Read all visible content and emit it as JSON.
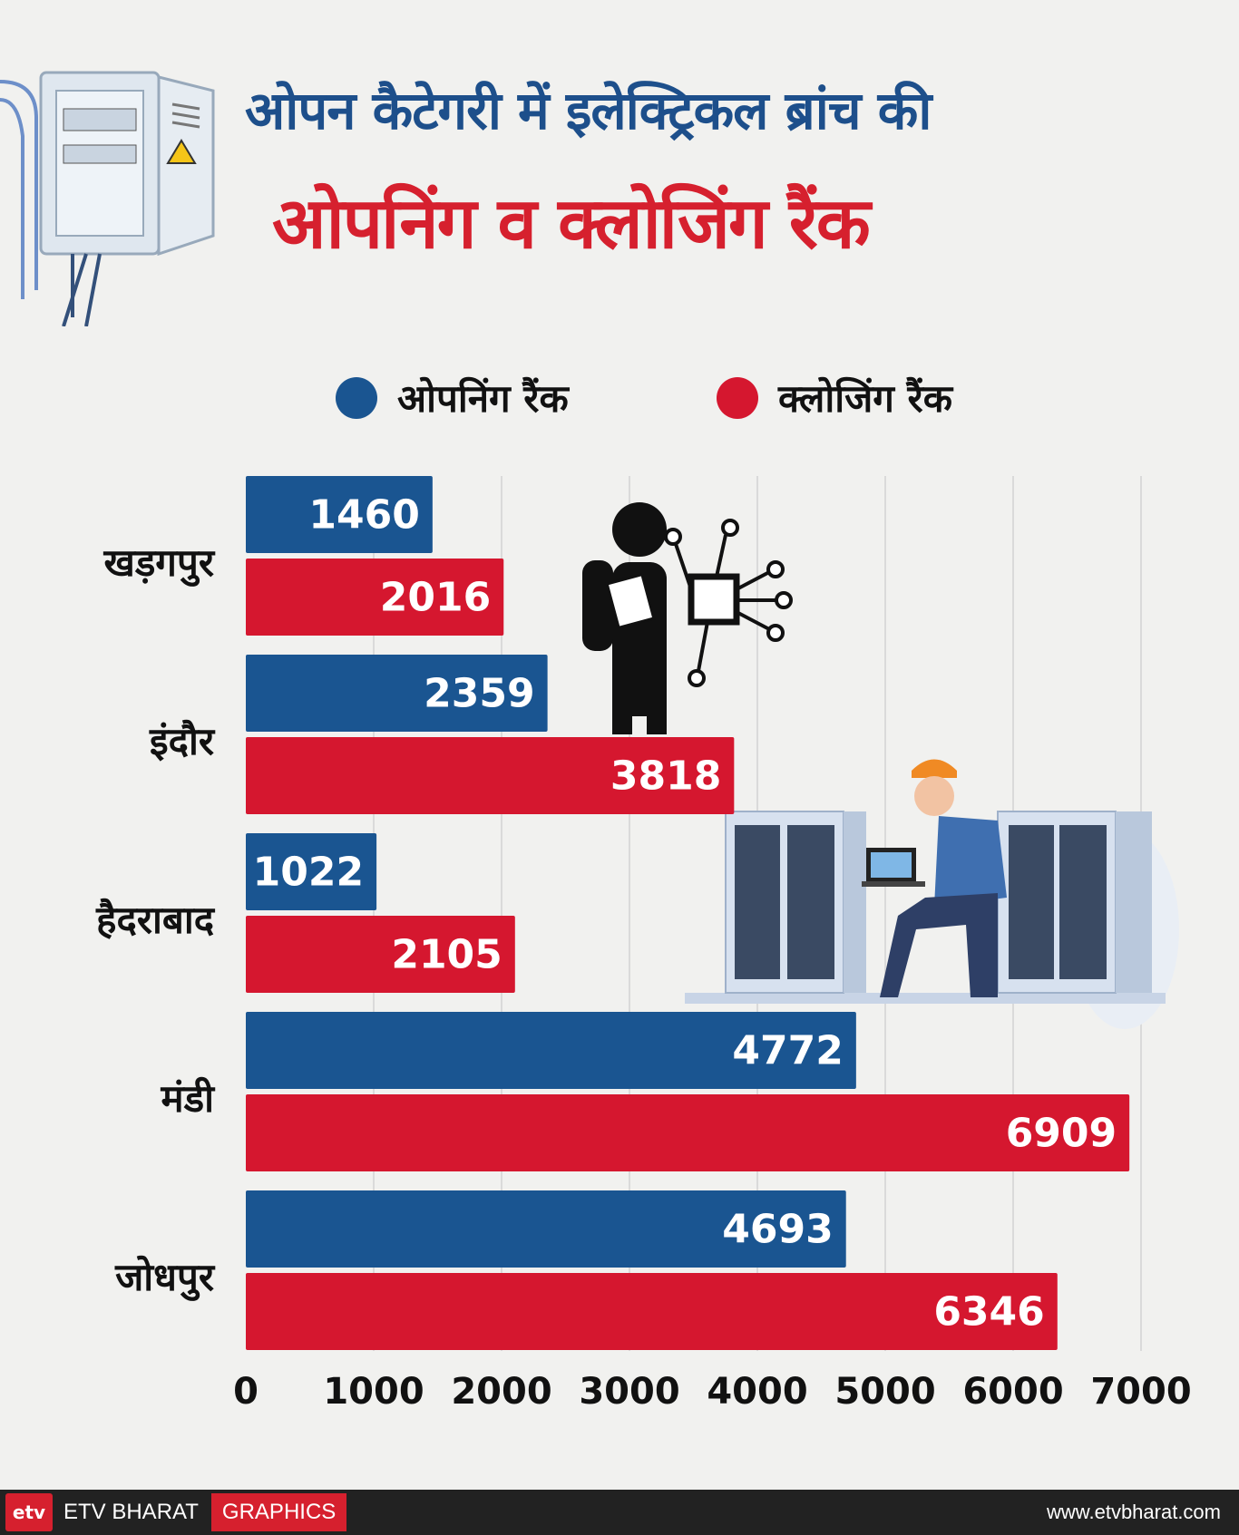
{
  "title": {
    "line1": "ओपन कैटेगरी में इलेक्ट्रिकल ब्रांच की",
    "line2": "ओपनिंग व क्लोजिंग रैंक"
  },
  "colors": {
    "opening": "#1a5591",
    "closing": "#d5172f",
    "title_blue": "#1d4f8b",
    "title_red": "#d6202e"
  },
  "chart_data": {
    "type": "bar",
    "orientation": "horizontal",
    "categories": [
      "खड़गपुर",
      "इंदौर",
      "हैदराबाद",
      "मंडी",
      "जोधपुर"
    ],
    "series": [
      {
        "name": "ओपनिंग रैंक",
        "color": "#1a5591",
        "values": [
          1460,
          2359,
          1022,
          4772,
          4693
        ]
      },
      {
        "name": "क्लोजिंग रैंक",
        "color": "#d5172f",
        "values": [
          2016,
          3818,
          2105,
          6909,
          6346
        ]
      }
    ],
    "xlim": [
      0,
      7000
    ],
    "xticks": [
      "0",
      "1000",
      "2000",
      "3000",
      "4000",
      "5000",
      "6000",
      "7000"
    ],
    "grid": true,
    "legend_position": "top",
    "data_labels": true
  },
  "footer": {
    "logo": "etv",
    "brand": "ETV BHARAT",
    "section": "GRAPHICS",
    "url": "www.etvbharat.com"
  }
}
